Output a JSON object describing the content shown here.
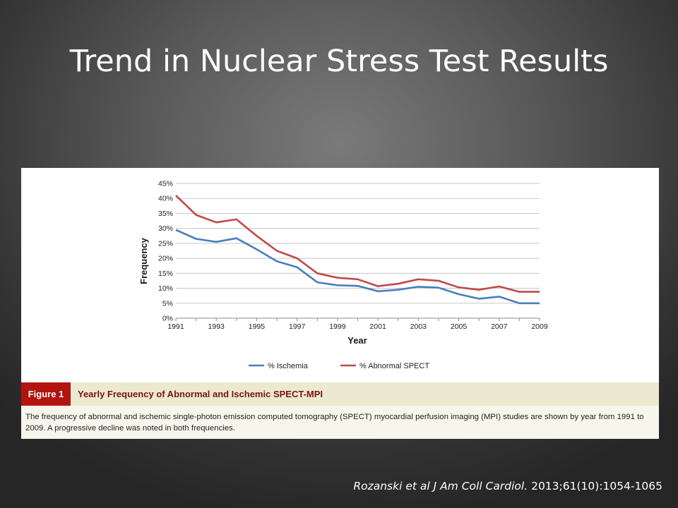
{
  "slide": {
    "title": "Trend in Nuclear Stress Test Results",
    "citation_authors": "Rozanski et al J Am Coll Cardiol.",
    "citation_details": "2013;61(10):1054-1065"
  },
  "figure": {
    "label": "Figure 1",
    "title": "Yearly Frequency of Abnormal and Ischemic SPECT-MPI",
    "caption": "The frequency of abnormal and ischemic single-photon emission computed tomography (SPECT) myocardial perfusion imaging (MPI) studies are shown by year from 1991 to 2009. A progressive decline was noted in both frequencies."
  },
  "chart_data": {
    "type": "line",
    "x": [
      1991,
      1992,
      1993,
      1994,
      1995,
      1996,
      1997,
      1998,
      1999,
      2000,
      2001,
      2002,
      2003,
      2004,
      2005,
      2006,
      2007,
      2008,
      2009
    ],
    "x_tick_labels": [
      "1991",
      "1993",
      "1995",
      "1997",
      "1999",
      "2001",
      "2003",
      "2005",
      "2007",
      "2009"
    ],
    "y_tick_labels": [
      "0%",
      "5%",
      "10%",
      "15%",
      "20%",
      "25%",
      "30%",
      "35%",
      "40%",
      "45%"
    ],
    "xlabel": "Year",
    "ylabel": "Frequency",
    "ylim": [
      0,
      45
    ],
    "grid": "horizontal",
    "legend_position": "bottom",
    "series": [
      {
        "name": "% Ischemia",
        "color": "#4a7ebb",
        "values": [
          29.5,
          26.5,
          25.5,
          26.7,
          23.0,
          19.0,
          17.0,
          12.0,
          11.0,
          10.8,
          9.0,
          9.5,
          10.5,
          10.2,
          8.0,
          6.5,
          7.2,
          5.0,
          5.0
        ]
      },
      {
        "name": "% Abnormal SPECT",
        "color": "#be4b48",
        "values": [
          41.0,
          34.5,
          32.0,
          33.0,
          27.5,
          22.5,
          20.0,
          15.0,
          13.5,
          13.0,
          10.7,
          11.5,
          13.0,
          12.5,
          10.3,
          9.5,
          10.6,
          8.8,
          8.8
        ]
      }
    ]
  }
}
